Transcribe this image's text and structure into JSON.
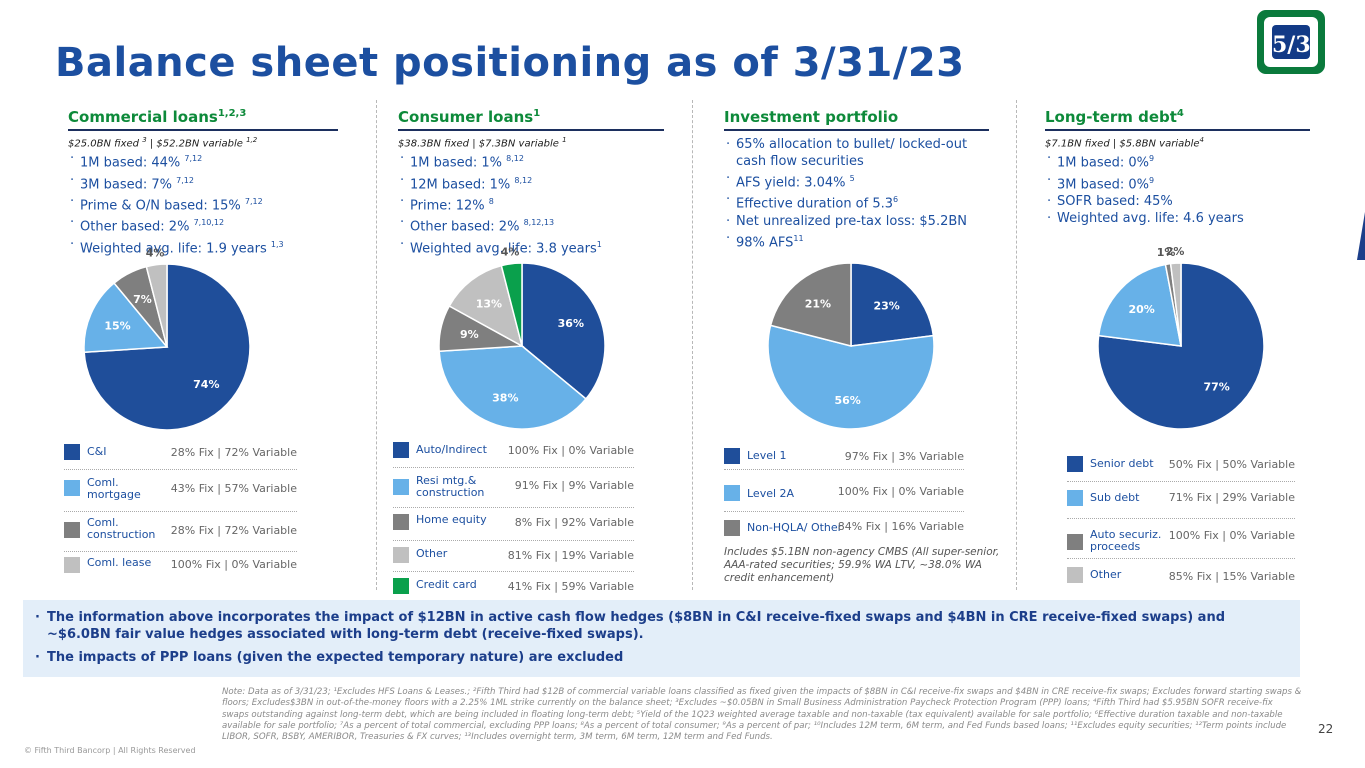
{
  "title": "Balance sheet positioning as of 3/31/23",
  "logo_text": "5/3",
  "colors": {
    "blue": "#1f4e9a",
    "lightblue": "#67b1e8",
    "darkgray": "#7f7f7f",
    "lightgray": "#c0c0c0",
    "green": "#0aa04c"
  },
  "commercial": {
    "heading": "Commercial loans",
    "heading_sup": "1,2,3",
    "sub": "$25.0BN fixed",
    "sub_sup1": "3",
    "sub_mid": " | $52.2BN variable ",
    "sub_sup2": "1,2",
    "bullets": [
      {
        "text": "1M based: 44%",
        "sup": "7,12"
      },
      {
        "text": "3M based: 7%",
        "sup": "7,12"
      },
      {
        "text": "Prime & O/N based: 15%",
        "sup": "7,12"
      },
      {
        "text": "Other based: 2%",
        "sup": "7,10,12"
      },
      {
        "text": "Weighted avg. life: 1.9 years",
        "sup": "1,3"
      }
    ],
    "chart_data": {
      "type": "pie",
      "labels": [
        "C&I",
        "Coml. mortgage",
        "Coml. construction",
        "Coml. lease"
      ],
      "values": [
        74,
        15,
        7,
        4
      ],
      "value_labels": [
        "74%",
        "15%",
        "7%",
        "4%"
      ]
    },
    "legend": [
      {
        "name": "C&I",
        "value": "28% Fix | 72% Variable"
      },
      {
        "name": "Coml. mortgage",
        "value": "43% Fix | 57% Variable"
      },
      {
        "name": "Coml. construction",
        "value": "28% Fix | 72% Variable"
      },
      {
        "name": "Coml. lease",
        "value": "100% Fix | 0% Variable"
      }
    ]
  },
  "consumer": {
    "heading": "Consumer loans",
    "heading_sup": "1",
    "sub": "$38.3BN fixed | $7.3BN variable ",
    "sub_sup": "1",
    "bullets": [
      {
        "text": "1M based: 1%",
        "sup": "8,12"
      },
      {
        "text": "12M based: 1%",
        "sup": "8,12"
      },
      {
        "text": "Prime: 12%",
        "sup": "8"
      },
      {
        "text": "Other based: 2%",
        "sup": "8,12,13"
      },
      {
        "text": "Weighted avg. life: 3.8 years",
        "sup": "1"
      }
    ],
    "chart_data": {
      "type": "pie",
      "labels": [
        "Auto/Indirect",
        "Resi mtg.& construction",
        "Home equity",
        "Other",
        "Credit card"
      ],
      "values": [
        36,
        38,
        9,
        13,
        4
      ],
      "value_labels": [
        "36%",
        "38%",
        "9%",
        "13%",
        "4%"
      ]
    },
    "legend": [
      {
        "name": "Auto/Indirect",
        "value": "100% Fix | 0% Variable"
      },
      {
        "name": "Resi mtg.& construction",
        "value": "91% Fix | 9% Variable"
      },
      {
        "name": "Home equity",
        "value": "8% Fix | 92% Variable"
      },
      {
        "name": "Other",
        "value": "81% Fix | 19% Variable"
      },
      {
        "name": "Credit card",
        "value": "41% Fix | 59% Variable"
      }
    ]
  },
  "investment": {
    "heading": "Investment portfolio",
    "bullets": [
      {
        "text": "65% allocation to bullet/ locked-out cash flow securities",
        "sup": ""
      },
      {
        "text": "AFS yield: 3.04%",
        "sup": "5"
      },
      {
        "text": "Effective duration of 5.3",
        "sup": "6"
      },
      {
        "text": "Net unrealized pre-tax loss: $5.2BN",
        "sup": ""
      },
      {
        "text": "98% AFS",
        "sup": "11"
      }
    ],
    "chart_data": {
      "type": "pie",
      "labels": [
        "Level 1",
        "Level 2A",
        "Non-HQLA/ Other"
      ],
      "values": [
        23,
        56,
        21
      ],
      "value_labels": [
        "23%",
        "56%",
        "21%"
      ]
    },
    "legend": [
      {
        "name": "Level 1",
        "value": "97% Fix | 3% Variable"
      },
      {
        "name": "Level 2A",
        "value": "100% Fix | 0% Variable"
      },
      {
        "name": "Non-HQLA/ Other",
        "value": "84% Fix | 16% Variable"
      }
    ],
    "note": "Includes $5.1BN non-agency CMBS (All super-senior, AAA-rated securities; 59.9% WA LTV, ~38.0% WA credit enhancement)"
  },
  "debt": {
    "heading": "Long-term debt",
    "heading_sup": "4",
    "sub": "$7.1BN fixed | $5.8BN variable",
    "sub_sup": "4",
    "bullets": [
      {
        "text": "1M based: 0%",
        "sup": "9"
      },
      {
        "text": "3M based: 0%",
        "sup": "9"
      },
      {
        "text": "SOFR based: 45%",
        "sup": ""
      },
      {
        "text": "Weighted avg. life: 4.6 years",
        "sup": ""
      }
    ],
    "chart_data": {
      "type": "pie",
      "labels": [
        "Senior debt",
        "Sub debt",
        "Auto securiz. proceeds",
        "Other"
      ],
      "values": [
        77,
        20,
        1,
        2
      ],
      "value_labels": [
        "77%",
        "20%",
        "1%",
        "2%"
      ]
    },
    "legend": [
      {
        "name": "Senior debt",
        "value": "50% Fix | 50% Variable"
      },
      {
        "name": "Sub debt",
        "value": "71% Fix | 29% Variable"
      },
      {
        "name": "Auto securiz. proceeds",
        "value": "100% Fix | 0% Variable"
      },
      {
        "name": "Other",
        "value": "85% Fix | 15% Variable"
      }
    ]
  },
  "callout": [
    "The information above incorporates the impact of $12BN in active cash flow hedges ($8BN in C&I receive-fixed swaps and $4BN in CRE receive-fixed swaps) and ~$6.0BN fair value hedges associated with long-term debt (receive-fixed swaps).",
    "The impacts of PPP loans (given the expected temporary nature) are excluded"
  ],
  "footnote": "Note: Data as of 3/31/23; ¹Excludes HFS Loans & Leases.; ²Fifth Third had $12B of commercial variable loans classified as fixed given the impacts of $8BN in C&I receive-fix swaps and $4BN in CRE receive-fix swaps; Excludes forward starting swaps & floors; Excludes$3BN in out-of-the-money floors with a 2.25% 1ML strike currently on the balance sheet; ³Excludes ~$0.05BN in Small Business Administration Paycheck Protection Program (PPP) loans; ⁴Fifth Third had $5.95BN SOFR receive-fix swaps outstanding against long-term debt, which are being included in floating long-term debt; ⁵Yield of the 1Q23 weighted average taxable and non-taxable (tax equivalent) available for sale portfolio; ⁶Effective duration taxable and non-taxable available for sale portfolio; ⁷As a percent of total commercial, excluding PPP loans; ⁸As a percent of total consumer; ⁹As a percent of par; ¹⁰Includes 12M term, 6M term, and Fed Funds based loans; ¹¹Excludes equity securities; ¹²Term points include LIBOR, SOFR, BSBY, AMERIBOR, Treasuries & FX curves; ¹³Includes overnight term, 3M term, 6M term, 12M term and Fed Funds.",
  "copyright": "© Fifth Third Bancorp | All Rights Reserved",
  "page_number": "22"
}
